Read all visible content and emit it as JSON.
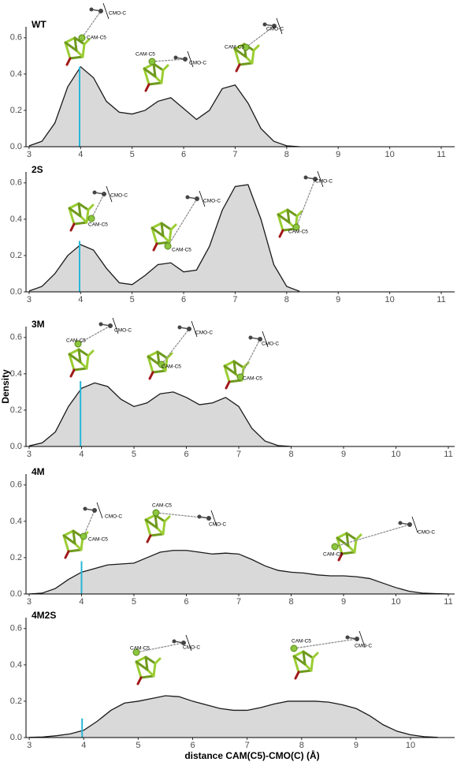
{
  "chart_data": [
    {
      "type": "area",
      "title": "WT",
      "fill": "#d9d9d9",
      "line_color": "#1a1a1a",
      "xlim": [
        2.94,
        11.26
      ],
      "ylim": [
        0,
        0.66
      ],
      "xticks": [
        3,
        4,
        5,
        6,
        7,
        8,
        9,
        10,
        11
      ],
      "yticks": [
        {
          "value": 0,
          "label": "0.0"
        },
        0.2,
        0.4,
        0.6
      ],
      "x": [
        3,
        3.25,
        3.5,
        3.75,
        4,
        4.25,
        4.5,
        4.75,
        5,
        5.25,
        5.5,
        5.75,
        6,
        6.25,
        6.5,
        6.75,
        7,
        7.25,
        7.5,
        7.75,
        8,
        8.25
      ],
      "values": [
        0.005,
        0.03,
        0.13,
        0.33,
        0.44,
        0.38,
        0.25,
        0.19,
        0.18,
        0.2,
        0.25,
        0.27,
        0.21,
        0.15,
        0.2,
        0.32,
        0.34,
        0.24,
        0.1,
        0.03,
        0.005,
        0
      ],
      "marker": {
        "x": 3.98,
        "top": 0.44,
        "color": "#29b6d8"
      },
      "annotations": [
        [
          "CAM-C5",
          "CMO-C"
        ],
        [
          "CAM-C5",
          "CMO-C"
        ],
        [
          "CAM-C5",
          "CMO-C"
        ]
      ]
    },
    {
      "type": "area",
      "title": "2S",
      "fill": "#d9d9d9",
      "line_color": "#1a1a1a",
      "xlim": [
        2.94,
        11.26
      ],
      "ylim": [
        0,
        0.66
      ],
      "xticks": [
        3,
        4,
        5,
        6,
        7,
        8,
        9,
        10,
        11
      ],
      "yticks": [
        {
          "value": 0,
          "label": "0.0"
        },
        0.2,
        0.4,
        0.6
      ],
      "x": [
        3,
        3.25,
        3.5,
        3.75,
        4,
        4.25,
        4.5,
        4.75,
        5,
        5.25,
        5.5,
        5.75,
        6,
        6.25,
        6.5,
        6.75,
        7,
        7.25,
        7.5,
        7.75,
        8,
        8.25
      ],
      "values": [
        0.005,
        0.03,
        0.1,
        0.2,
        0.26,
        0.23,
        0.13,
        0.05,
        0.04,
        0.09,
        0.15,
        0.16,
        0.11,
        0.12,
        0.25,
        0.45,
        0.58,
        0.59,
        0.4,
        0.15,
        0.03,
        0.003
      ],
      "marker": {
        "x": 3.98,
        "top": 0.28,
        "color": "#29b6d8"
      },
      "annotations": [
        [
          "CAM-C5",
          "CMO-C"
        ],
        [
          "CAM-C5",
          "CMO-C"
        ],
        [
          "CAM-C5",
          "CMO-C"
        ]
      ]
    },
    {
      "type": "area",
      "title": "3M",
      "ylabel": "Density",
      "fill": "#d9d9d9",
      "line_color": "#1a1a1a",
      "xlim": [
        2.94,
        11.12
      ],
      "ylim": [
        0,
        0.66
      ],
      "xticks": [
        3,
        4,
        5,
        6,
        7,
        8,
        9,
        10,
        11
      ],
      "yticks": [
        {
          "value": 0,
          "label": "0.0"
        },
        0.2,
        0.4,
        0.6
      ],
      "x": [
        3,
        3.25,
        3.5,
        3.75,
        4,
        4.25,
        4.5,
        4.75,
        5,
        5.25,
        5.5,
        5.75,
        6,
        6.25,
        6.5,
        6.75,
        7,
        7.25,
        7.5,
        7.75,
        8
      ],
      "values": [
        0.003,
        0.02,
        0.08,
        0.22,
        0.32,
        0.35,
        0.33,
        0.26,
        0.22,
        0.24,
        0.29,
        0.3,
        0.27,
        0.23,
        0.24,
        0.27,
        0.22,
        0.1,
        0.03,
        0.005,
        0
      ],
      "marker": {
        "x": 3.98,
        "top": 0.36,
        "color": "#29b6d8"
      },
      "annotations": [
        [
          "CAM-C5",
          "CMO-C"
        ],
        [
          "CAM-C5",
          "CMO-C"
        ],
        [
          "CAM-C5",
          "CMO-C"
        ]
      ]
    },
    {
      "type": "area",
      "title": "4M",
      "fill": "#d9d9d9",
      "line_color": "#1a1a1a",
      "xlim": [
        2.94,
        11.12
      ],
      "ylim": [
        0,
        0.66
      ],
      "xticks": [
        3,
        4,
        5,
        6,
        7,
        8,
        9,
        10,
        11
      ],
      "yticks": [
        {
          "value": 0,
          "label": "0.0"
        },
        0.2,
        0.4,
        0.6
      ],
      "x": [
        3,
        3.25,
        3.5,
        3.75,
        4,
        4.25,
        4.5,
        4.75,
        5,
        5.25,
        5.5,
        5.75,
        6,
        6.25,
        6.5,
        6.75,
        7,
        7.25,
        7.5,
        7.75,
        8,
        8.25,
        8.5,
        8.75,
        9,
        9.25,
        9.5,
        9.75,
        10,
        10.25,
        10.5,
        10.75,
        11
      ],
      "values": [
        0,
        0.005,
        0.03,
        0.08,
        0.12,
        0.14,
        0.16,
        0.165,
        0.17,
        0.2,
        0.23,
        0.24,
        0.24,
        0.23,
        0.22,
        0.225,
        0.22,
        0.19,
        0.155,
        0.13,
        0.12,
        0.115,
        0.105,
        0.1,
        0.1,
        0.095,
        0.085,
        0.06,
        0.035,
        0.015,
        0.005,
        0.002,
        0
      ],
      "marker": {
        "x": 4.0,
        "top": 0.18,
        "color": "#29b6d8"
      },
      "annotations": [
        [
          "CAM-C5",
          "CMO-C"
        ],
        [
          "CAM-C5",
          "CMO-C"
        ],
        [
          "CAM-C5",
          "CMO-C"
        ]
      ]
    },
    {
      "type": "area",
      "title": "4M2S",
      "xlabel": "distance CAM(C5)-CMO(C) (Å)",
      "fill": "#d9d9d9",
      "line_color": "#1a1a1a",
      "xlim": [
        2.94,
        10.81
      ],
      "ylim": [
        0,
        0.66
      ],
      "xticks": [
        3,
        4,
        5,
        6,
        7,
        8,
        9,
        10
      ],
      "yticks": [
        {
          "value": 0,
          "label": "0.0"
        },
        0.2,
        0.4,
        0.6
      ],
      "x": [
        3,
        3.25,
        3.5,
        3.75,
        4,
        4.25,
        4.5,
        4.75,
        5,
        5.25,
        5.5,
        5.75,
        6,
        6.25,
        6.5,
        6.75,
        7,
        7.25,
        7.5,
        7.75,
        8,
        8.25,
        8.5,
        8.75,
        9,
        9.25,
        9.5,
        9.75,
        10,
        10.25,
        10.5
      ],
      "values": [
        0.001,
        0.003,
        0.01,
        0.02,
        0.04,
        0.09,
        0.15,
        0.19,
        0.2,
        0.215,
        0.23,
        0.225,
        0.2,
        0.18,
        0.16,
        0.15,
        0.15,
        0.165,
        0.185,
        0.2,
        0.2,
        0.2,
        0.195,
        0.18,
        0.16,
        0.12,
        0.07,
        0.035,
        0.015,
        0.005,
        0.001
      ],
      "marker": {
        "x": 3.97,
        "top": 0.105,
        "color": "#29b6d8"
      },
      "annotations": [
        [
          "CAM-C5",
          "CMO-C"
        ],
        [
          "CAM-C5",
          "CMO-C"
        ]
      ]
    }
  ]
}
